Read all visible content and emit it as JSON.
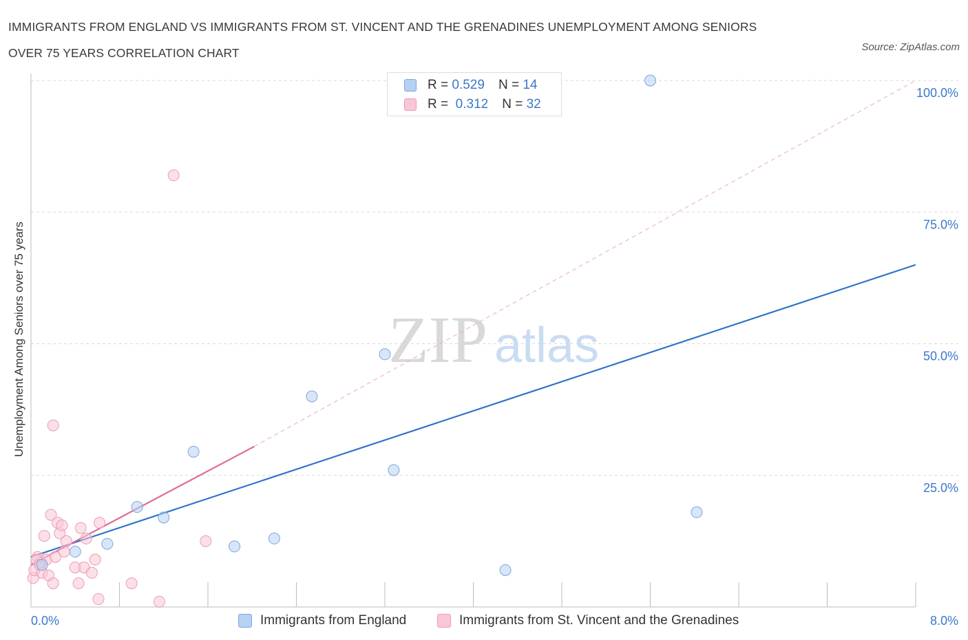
{
  "title_line1": "IMMIGRANTS FROM ENGLAND VS IMMIGRANTS FROM ST. VINCENT AND THE GRENADINES UNEMPLOYMENT AMONG SENIORS",
  "title_line2": "OVER 75 YEARS CORRELATION CHART",
  "source": "Source: ZipAtlas.com",
  "watermark": {
    "zip": "ZIP",
    "atlas": "atlas"
  },
  "legend": {
    "r_label": "R =",
    "n_label": "N =",
    "rows": [
      {
        "r": "0.529",
        "n": "14"
      },
      {
        "r": "0.312",
        "n": "32"
      }
    ]
  },
  "colors": {
    "england_fill": "#b7d1f3",
    "england_stroke": "#7ea6dd",
    "england_line": "#2f74c9",
    "svg_fill": "#f9c6d5",
    "svg_stroke": "#eb9bb4",
    "svg_line": "#e06a94",
    "axis_text": "#3a78c9",
    "grid": "#d8d8d8"
  },
  "chart_data": {
    "type": "scatter",
    "xlabel": "",
    "ylabel": "Unemployment Among Seniors over 75 years",
    "xlim": [
      0,
      8
    ],
    "ylim": [
      0,
      100
    ],
    "x_ticks": [
      {
        "v": 0,
        "label": "0.0%"
      },
      {
        "v": 8,
        "label": "8.0%"
      }
    ],
    "y_ticks": [
      {
        "v": 25,
        "label": "25.0%"
      },
      {
        "v": 50,
        "label": "50.0%"
      },
      {
        "v": 75,
        "label": "75.0%"
      },
      {
        "v": 100,
        "label": "100.0%"
      }
    ],
    "grid": true,
    "legend_position": "bottom",
    "series": [
      {
        "name": "Immigrants from England",
        "points": [
          [
            0.1,
            8.0
          ],
          [
            0.4,
            10.5
          ],
          [
            0.69,
            12.0
          ],
          [
            0.96,
            19.0
          ],
          [
            1.2,
            17.0
          ],
          [
            1.47,
            29.5
          ],
          [
            1.84,
            11.5
          ],
          [
            2.2,
            13.0
          ],
          [
            2.54,
            40.0
          ],
          [
            3.28,
            26.0
          ],
          [
            3.2,
            48.0
          ],
          [
            5.6,
            100.0
          ],
          [
            6.02,
            18.0
          ],
          [
            4.29,
            7.0
          ]
        ],
        "trend": {
          "x": [
            0.0,
            8.0
          ],
          "y": [
            9.5,
            65.0
          ]
        }
      },
      {
        "name": "Immigrants from St. Vincent and the Grenadines",
        "points": [
          [
            0.02,
            5.5
          ],
          [
            0.03,
            7.0
          ],
          [
            0.06,
            9.5
          ],
          [
            0.09,
            8.5
          ],
          [
            0.1,
            6.5
          ],
          [
            0.12,
            13.5
          ],
          [
            0.14,
            9.0
          ],
          [
            0.16,
            6.0
          ],
          [
            0.18,
            17.5
          ],
          [
            0.2,
            4.5
          ],
          [
            0.22,
            9.5
          ],
          [
            0.24,
            16.0
          ],
          [
            0.26,
            14.0
          ],
          [
            0.28,
            15.5
          ],
          [
            0.3,
            10.5
          ],
          [
            0.32,
            12.5
          ],
          [
            0.4,
            7.5
          ],
          [
            0.43,
            4.5
          ],
          [
            0.45,
            15.0
          ],
          [
            0.48,
            7.5
          ],
          [
            0.5,
            13.0
          ],
          [
            0.55,
            6.5
          ],
          [
            0.58,
            9.0
          ],
          [
            0.61,
            1.5
          ],
          [
            0.62,
            16.0
          ],
          [
            0.91,
            4.5
          ],
          [
            1.16,
            1.0
          ],
          [
            1.29,
            82.0
          ],
          [
            1.58,
            12.5
          ],
          [
            0.2,
            34.5
          ],
          [
            0.05,
            9.0
          ],
          [
            0.08,
            8.0
          ]
        ],
        "trend": {
          "x": [
            0.0,
            2.02
          ],
          "y": [
            8.0,
            30.5
          ]
        },
        "trend_extended": {
          "x": [
            2.02,
            8.0
          ],
          "y": [
            30.5,
            100.0
          ]
        }
      }
    ]
  }
}
